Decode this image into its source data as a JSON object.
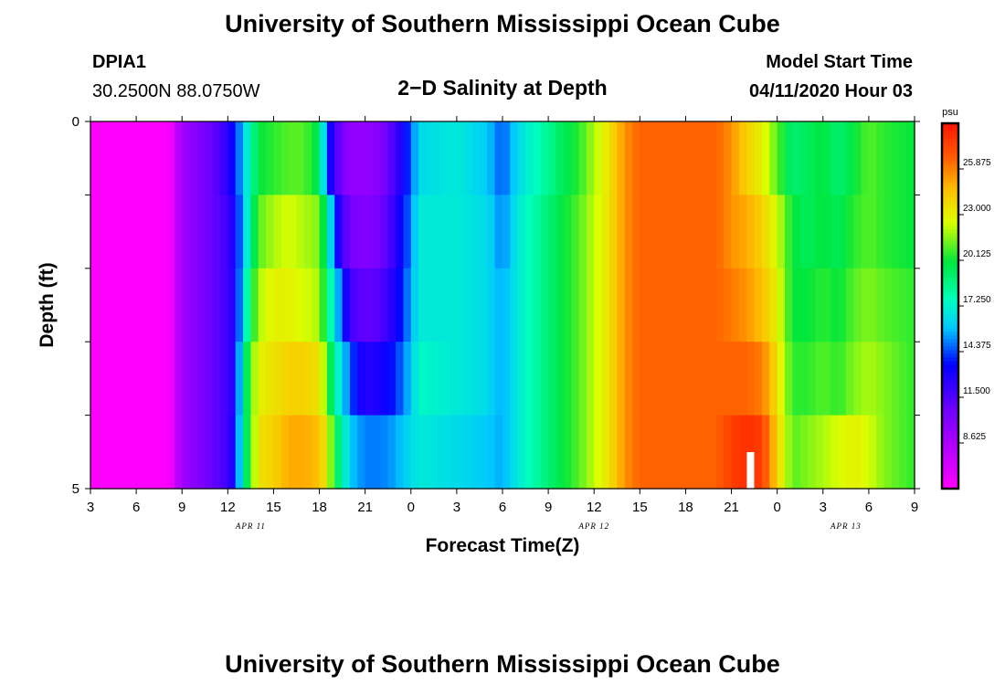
{
  "header": {
    "title": "University of Southern Mississippi Ocean Cube",
    "station": "DPIA1",
    "location": "30.2500N 88.0750W",
    "plot_title": "2−D Salinity at Depth",
    "model_start_label": "Model Start Time",
    "model_start_value": "04/11/2020 Hour 03"
  },
  "footer": {
    "title": "University of Southern Mississippi Ocean Cube"
  },
  "chart_data": {
    "type": "heatmap",
    "title": "2−D Salinity at Depth",
    "xlabel": "Forecast Time(Z)",
    "ylabel": "Depth (ft)",
    "x_tick_labels": [
      "3",
      "6",
      "9",
      "12",
      "15",
      "18",
      "21",
      "0",
      "3",
      "6",
      "9",
      "12",
      "15",
      "18",
      "21",
      "0",
      "3",
      "6",
      "9"
    ],
    "x_range_hours": [
      0,
      54
    ],
    "date_labels": [
      {
        "label": "APR  11",
        "hour": 10.5
      },
      {
        "label": "APR  12",
        "hour": 33
      },
      {
        "label": "APR  13",
        "hour": 49.5
      }
    ],
    "y_tick_labels": [
      "0",
      "5"
    ],
    "y_range": [
      0,
      5
    ],
    "depth_levels": 5,
    "colorbar": {
      "unit": "psu",
      "min": 5.75,
      "max": 28.75,
      "tick_labels": [
        "8.625",
        "11.500",
        "14.375",
        "17.250",
        "20.125",
        "23.000",
        "25.875"
      ],
      "tick_values": [
        8.625,
        11.5,
        14.375,
        17.25,
        20.125,
        23.0,
        25.875
      ]
    },
    "profiles": [
      {
        "hour": 0,
        "values": [
          5,
          5,
          5,
          5,
          5
        ]
      },
      {
        "hour": 5,
        "values": [
          5,
          5,
          5,
          5,
          5
        ]
      },
      {
        "hour": 5.5,
        "values": [
          7.5,
          7.5,
          7.5,
          7.5,
          7.5
        ]
      },
      {
        "hour": 6,
        "values": [
          9,
          9,
          9,
          9,
          9
        ]
      },
      {
        "hour": 7,
        "values": [
          10,
          10,
          10,
          10,
          10
        ]
      },
      {
        "hour": 8,
        "values": [
          11,
          11,
          11,
          11,
          11
        ]
      },
      {
        "hour": 9,
        "values": [
          12.5,
          12,
          12,
          12,
          12
        ]
      },
      {
        "hour": 9.5,
        "values": [
          14,
          13.5,
          13,
          13,
          13.5
        ]
      },
      {
        "hour": 10,
        "values": [
          16,
          15.5,
          16.5,
          18,
          18
        ]
      },
      {
        "hour": 10.5,
        "values": [
          18,
          18.5,
          19.5,
          21,
          21
        ]
      },
      {
        "hour": 11,
        "values": [
          20,
          21,
          22,
          23,
          23.5
        ]
      },
      {
        "hour": 12,
        "values": [
          20.5,
          22,
          23,
          23.5,
          24
        ]
      },
      {
        "hour": 13,
        "values": [
          21,
          22.5,
          23,
          24,
          25
        ]
      },
      {
        "hour": 14,
        "values": [
          21,
          22,
          22.5,
          24,
          25
        ]
      },
      {
        "hour": 15,
        "values": [
          19.5,
          21.5,
          22,
          23.5,
          24.5
        ]
      },
      {
        "hour": 15.5,
        "values": [
          14,
          18.5,
          19,
          21,
          23
        ]
      },
      {
        "hour": 16,
        "values": [
          12,
          14,
          17,
          18,
          20
        ]
      },
      {
        "hour": 16.5,
        "values": [
          10.5,
          12,
          14,
          16.5,
          18
        ]
      },
      {
        "hour": 17,
        "values": [
          9.5,
          10.5,
          12,
          14.5,
          16
        ]
      },
      {
        "hour": 18,
        "values": [
          9.5,
          10,
          11,
          12.5,
          15
        ]
      },
      {
        "hour": 19,
        "values": [
          10,
          10.5,
          11.5,
          13,
          15
        ]
      },
      {
        "hour": 20,
        "values": [
          12,
          12.5,
          13,
          14,
          15.5
        ]
      },
      {
        "hour": 21,
        "values": [
          14.5,
          15,
          15.5,
          16,
          16.5
        ]
      },
      {
        "hour": 21.5,
        "values": [
          16.5,
          17,
          17,
          17.5,
          17
        ]
      },
      {
        "hour": 24,
        "values": [
          17,
          17,
          17,
          17,
          16.5
        ]
      },
      {
        "hour": 26,
        "values": [
          16,
          16.5,
          16.5,
          16.5,
          16
        ]
      },
      {
        "hour": 27,
        "values": [
          14.5,
          15,
          15.5,
          15.5,
          15.5
        ]
      },
      {
        "hour": 28,
        "values": [
          16.5,
          17,
          17,
          17,
          17
        ]
      },
      {
        "hour": 29,
        "values": [
          17.5,
          18,
          18,
          18,
          18
        ]
      },
      {
        "hour": 30,
        "values": [
          18.5,
          19,
          19,
          19,
          19
        ]
      },
      {
        "hour": 32,
        "values": [
          20.5,
          21,
          21,
          21,
          21
        ]
      },
      {
        "hour": 34,
        "values": [
          23.5,
          23.5,
          23.5,
          23.5,
          23.5
        ]
      },
      {
        "hour": 35,
        "values": [
          25.5,
          25.5,
          25.5,
          25.5,
          25.5
        ]
      },
      {
        "hour": 36,
        "values": [
          26.5,
          26.5,
          26.5,
          26.5,
          26.5
        ]
      },
      {
        "hour": 41,
        "values": [
          26.5,
          26.5,
          26.5,
          26.5,
          26.5
        ]
      },
      {
        "hour": 42,
        "values": [
          25.5,
          25.5,
          26,
          26.5,
          27.5
        ]
      },
      {
        "hour": 43,
        "values": [
          24,
          25,
          25.5,
          26.5,
          28
        ]
      },
      {
        "hour": 44,
        "values": [
          23,
          24,
          24.5,
          26,
          27.5
        ]
      },
      {
        "hour": 45,
        "values": [
          21,
          22.5,
          23,
          23.5,
          24
        ]
      },
      {
        "hour": 46,
        "values": [
          19,
          20,
          20,
          20.5,
          21
        ]
      },
      {
        "hour": 47,
        "values": [
          19.5,
          19.5,
          20,
          20.5,
          21.5
        ]
      },
      {
        "hour": 48,
        "values": [
          20,
          20,
          20.5,
          21,
          22
        ]
      },
      {
        "hour": 49,
        "values": [
          19,
          19.5,
          20,
          20.5,
          22.5
        ]
      },
      {
        "hour": 50,
        "values": [
          20,
          20.5,
          21,
          21.5,
          23
        ]
      },
      {
        "hour": 51,
        "values": [
          21,
          21,
          21.5,
          22,
          22.5
        ]
      },
      {
        "hour": 52,
        "values": [
          20.5,
          20.5,
          21,
          21.5,
          21.5
        ]
      },
      {
        "hour": 54,
        "values": [
          20,
          20,
          20.5,
          20.5,
          20.5
        ]
      }
    ],
    "missing_data": [
      {
        "hour": 43.25,
        "depth_level": 5
      }
    ]
  }
}
